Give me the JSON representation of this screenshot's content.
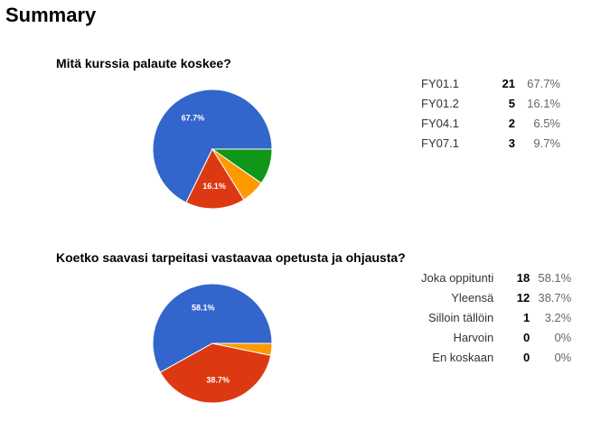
{
  "page": {
    "title": "Summary"
  },
  "colors": [
    "#3366cc",
    "#dc3912",
    "#ff9900",
    "#109618",
    "#990099"
  ],
  "chart_data": [
    {
      "type": "pie",
      "title": "Mitä kurssia palaute koskee?",
      "categories": [
        "FY01.1",
        "FY01.2",
        "FY04.1",
        "FY07.1"
      ],
      "values": [
        21,
        5,
        2,
        3
      ],
      "percent_labels": [
        "67.7%",
        "16.1%",
        "6.5%",
        "9.7%"
      ],
      "slice_labels": [
        "67.7%",
        "16.1%",
        "",
        ""
      ]
    },
    {
      "type": "pie",
      "title": "Koetko saavasi tarpeitasi vastaavaa opetusta ja ohjausta?",
      "categories": [
        "Joka oppitunti",
        "Yleensä",
        "Silloin tällöin",
        "Harvoin",
        "En koskaan"
      ],
      "values": [
        18,
        12,
        1,
        0,
        0
      ],
      "percent_labels": [
        "58.1%",
        "38.7%",
        "3.2%",
        "0%",
        "0%"
      ],
      "slice_labels": [
        "58.1%",
        "38.7%",
        "",
        "",
        ""
      ]
    }
  ]
}
